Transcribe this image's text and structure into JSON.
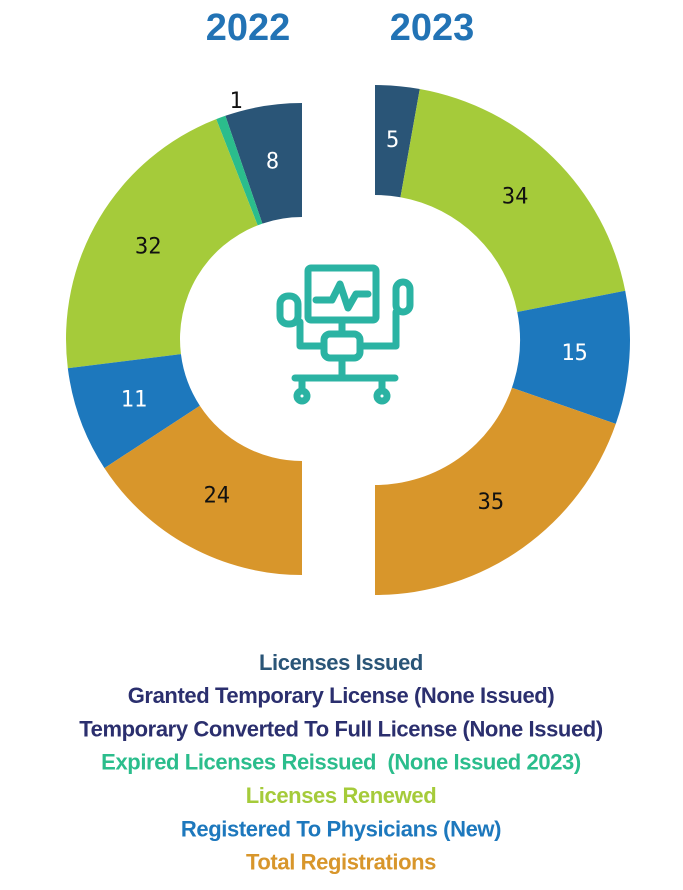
{
  "chart_data": {
    "type": "split-donut",
    "categories": [
      "2022",
      "2023"
    ],
    "series": [
      {
        "name": "Licenses Issued",
        "color": "#2a5577",
        "values": [
          8,
          5
        ]
      },
      {
        "name": "Granted Temporary License (None Issued)",
        "color": "#2b2f6e",
        "values": [
          null,
          null
        ]
      },
      {
        "name": "Temporary Converted To Full License (None Issued)",
        "color": "#2b2f6e",
        "values": [
          null,
          null
        ]
      },
      {
        "name": "Expired Licenses Reissued  (None Issued 2023)",
        "color": "#2bbd8c",
        "values": [
          1,
          null
        ]
      },
      {
        "name": "Licenses Renewed",
        "color": "#a5cb3a",
        "values": [
          32,
          34
        ]
      },
      {
        "name": "Registered To Physicians (New)",
        "color": "#1d78bd",
        "values": [
          11,
          15
        ]
      },
      {
        "name": "Total Registrations",
        "color": "#d8962b",
        "values": [
          24,
          35
        ]
      }
    ]
  }
}
